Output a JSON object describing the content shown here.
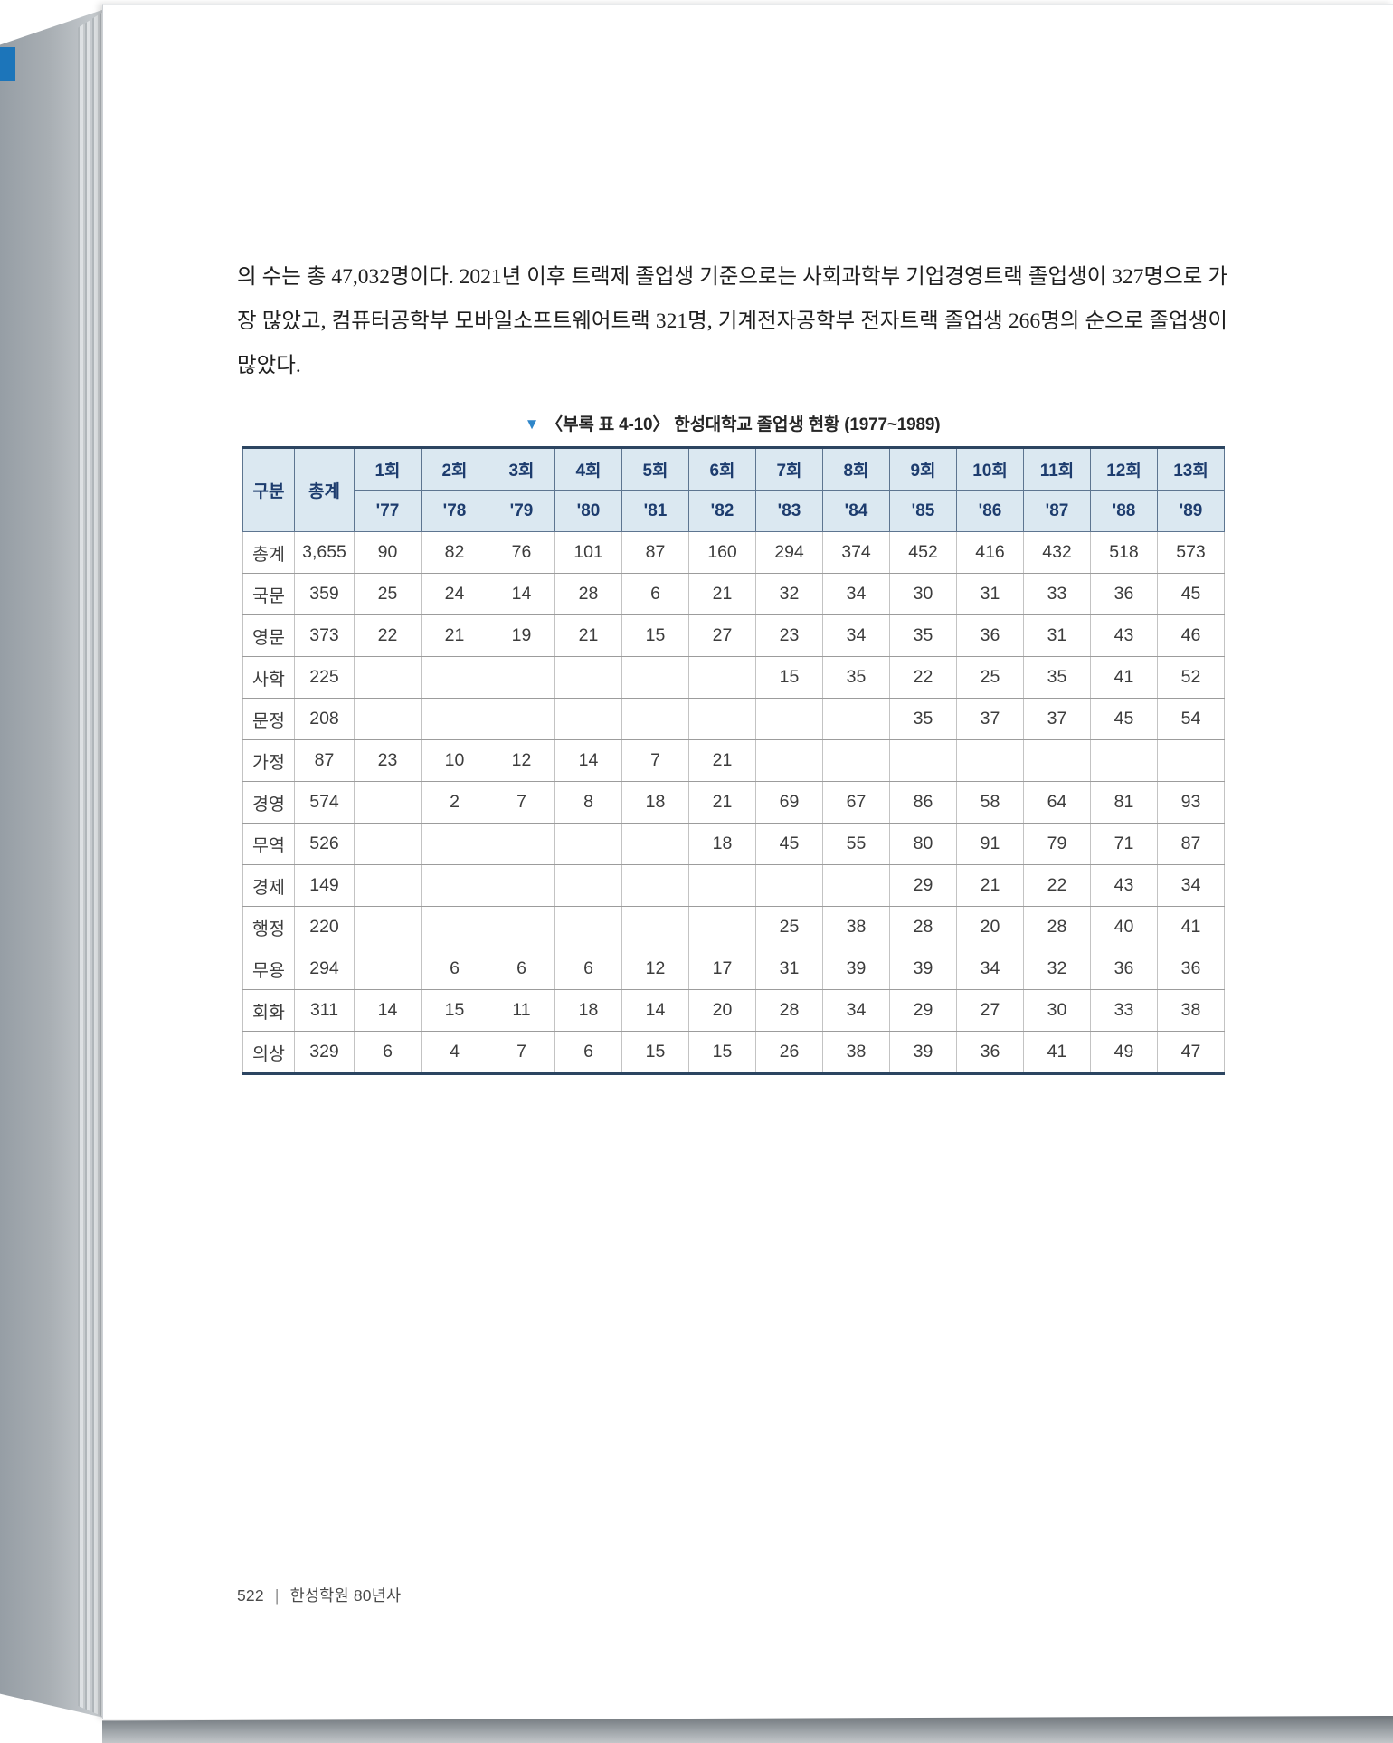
{
  "colors": {
    "accent_blue": "#2f86c9",
    "bookmark_blue": "#1c75ba",
    "table_header_bg": "#dbe8f1",
    "table_header_text": "#1d3c6e",
    "table_frame": "#2c4561"
  },
  "paragraph": "의 수는 총 47,032명이다. 2021년 이후 트랙제 졸업생 기준으로는 사회과학부 기업경영트랙 졸업생이 327명으로 가장 많았고, 컴퓨터공학부 모바일소프트웨어트랙 321명, 기계전자공학부 전자트랙 졸업생 266명의 순으로 졸업생이 많았다.",
  "table": {
    "marker": "▼",
    "title": "〈부록 표 4-10〉 한성대학교 졸업생 현황 (1977~1989)",
    "header": {
      "col_label": "구분",
      "col_total": "총계",
      "sessions": [
        "1회",
        "2회",
        "3회",
        "4회",
        "5회",
        "6회",
        "7회",
        "8회",
        "9회",
        "10회",
        "11회",
        "12회",
        "13회"
      ],
      "years": [
        "'77",
        "'78",
        "'79",
        "'80",
        "'81",
        "'82",
        "'83",
        "'84",
        "'85",
        "'86",
        "'87",
        "'88",
        "'89"
      ]
    },
    "rows": [
      {
        "label": "총계",
        "total": "3,655",
        "values": [
          "90",
          "82",
          "76",
          "101",
          "87",
          "160",
          "294",
          "374",
          "452",
          "416",
          "432",
          "518",
          "573"
        ]
      },
      {
        "label": "국문",
        "total": "359",
        "values": [
          "25",
          "24",
          "14",
          "28",
          "6",
          "21",
          "32",
          "34",
          "30",
          "31",
          "33",
          "36",
          "45"
        ]
      },
      {
        "label": "영문",
        "total": "373",
        "values": [
          "22",
          "21",
          "19",
          "21",
          "15",
          "27",
          "23",
          "34",
          "35",
          "36",
          "31",
          "43",
          "46"
        ]
      },
      {
        "label": "사학",
        "total": "225",
        "values": [
          "",
          "",
          "",
          "",
          "",
          "",
          "15",
          "35",
          "22",
          "25",
          "35",
          "41",
          "52"
        ]
      },
      {
        "label": "문정",
        "total": "208",
        "values": [
          "",
          "",
          "",
          "",
          "",
          "",
          "",
          "",
          "35",
          "37",
          "37",
          "45",
          "54"
        ]
      },
      {
        "label": "가정",
        "total": "87",
        "values": [
          "23",
          "10",
          "12",
          "14",
          "7",
          "21",
          "",
          "",
          "",
          "",
          "",
          "",
          ""
        ]
      },
      {
        "label": "경영",
        "total": "574",
        "values": [
          "",
          "2",
          "7",
          "8",
          "18",
          "21",
          "69",
          "67",
          "86",
          "58",
          "64",
          "81",
          "93"
        ]
      },
      {
        "label": "무역",
        "total": "526",
        "values": [
          "",
          "",
          "",
          "",
          "",
          "18",
          "45",
          "55",
          "80",
          "91",
          "79",
          "71",
          "87"
        ]
      },
      {
        "label": "경제",
        "total": "149",
        "values": [
          "",
          "",
          "",
          "",
          "",
          "",
          "",
          "",
          "29",
          "21",
          "22",
          "43",
          "34"
        ]
      },
      {
        "label": "행정",
        "total": "220",
        "values": [
          "",
          "",
          "",
          "",
          "",
          "",
          "25",
          "38",
          "28",
          "20",
          "28",
          "40",
          "41"
        ]
      },
      {
        "label": "무용",
        "total": "294",
        "values": [
          "",
          "6",
          "6",
          "6",
          "12",
          "17",
          "31",
          "39",
          "39",
          "34",
          "32",
          "36",
          "36"
        ]
      },
      {
        "label": "회화",
        "total": "311",
        "values": [
          "14",
          "15",
          "11",
          "18",
          "14",
          "20",
          "28",
          "34",
          "29",
          "27",
          "30",
          "33",
          "38"
        ]
      },
      {
        "label": "의상",
        "total": "329",
        "values": [
          "6",
          "4",
          "7",
          "6",
          "15",
          "15",
          "26",
          "38",
          "39",
          "36",
          "41",
          "49",
          "47"
        ]
      }
    ]
  },
  "footer": {
    "page_number": "522",
    "separator": "|",
    "book_title": "한성학원 80년사"
  }
}
